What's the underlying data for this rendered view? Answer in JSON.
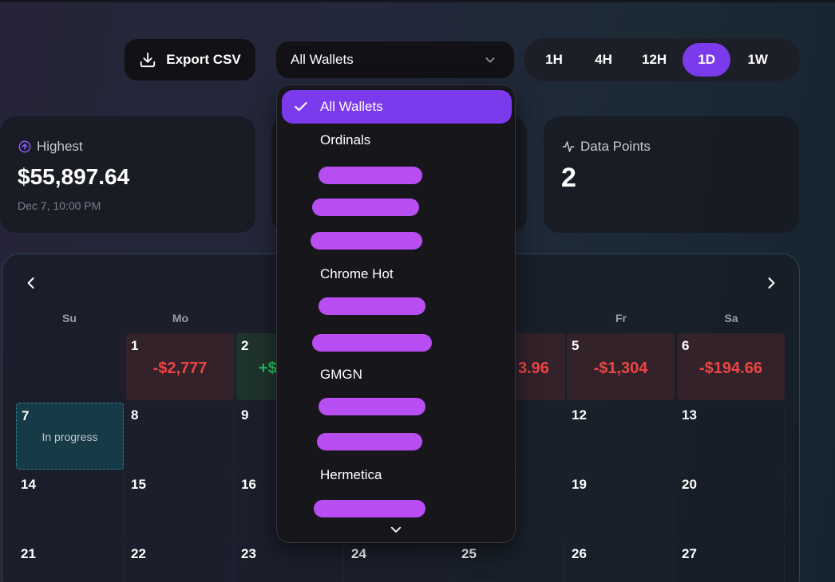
{
  "toolbar": {
    "export_label": "Export CSV",
    "wallet_selected": "All Wallets",
    "ranges": [
      "1H",
      "4H",
      "12H",
      "1D",
      "1W"
    ],
    "active_range": "1D"
  },
  "stats": {
    "highest": {
      "label": "Highest",
      "value": "$55,897.64",
      "sub": "Dec 7, 10:00 PM"
    },
    "data_points": {
      "label": "Data Points",
      "value": "2"
    }
  },
  "calendar": {
    "weekdays": [
      "Su",
      "Mo",
      "",
      "",
      "h",
      "Fr",
      "Sa"
    ],
    "days": [
      {
        "num": "1",
        "pnl": "-$2,777",
        "kind": "neg"
      },
      {
        "num": "2",
        "pnl": "+$",
        "kind": "pos"
      },
      {
        "num": "",
        "pnl": "3.96",
        "kind": "neg"
      },
      {
        "num": "5",
        "pnl": "-$1,304",
        "kind": "neg"
      },
      {
        "num": "6",
        "pnl": "-$194.66",
        "kind": "neg"
      },
      {
        "num": "7",
        "status": "In progress",
        "kind": "progress"
      },
      {
        "num": "8"
      },
      {
        "num": "9"
      },
      {
        "num": "12"
      },
      {
        "num": "13"
      },
      {
        "num": "14"
      },
      {
        "num": "15"
      },
      {
        "num": "16"
      },
      {
        "num": "19"
      },
      {
        "num": "20"
      },
      {
        "num": "21"
      },
      {
        "num": "22"
      },
      {
        "num": "23"
      },
      {
        "num": "24"
      },
      {
        "num": "25"
      },
      {
        "num": "26"
      },
      {
        "num": "27"
      }
    ]
  },
  "wallet_dropdown": {
    "items": [
      {
        "label": "All Wallets",
        "selected": true
      },
      {
        "label": "Ordinals"
      },
      {
        "label": "Chrome Hot"
      },
      {
        "label": "GMGN"
      },
      {
        "label": "Hermetica"
      }
    ]
  },
  "colors": {
    "accent": "#7c3aed",
    "negative": "#ef4444",
    "positive": "#22c55e",
    "redaction": "#b84ef2"
  }
}
